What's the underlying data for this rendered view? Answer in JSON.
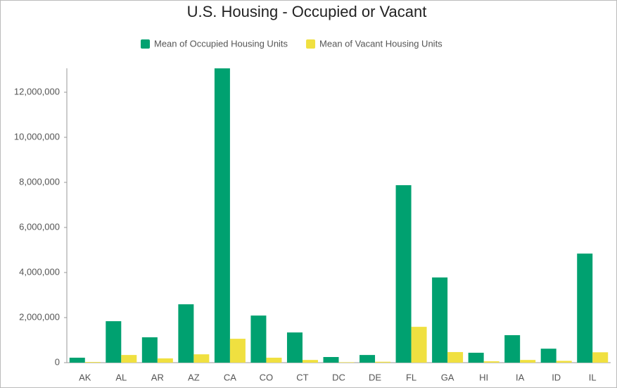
{
  "chart_data": {
    "type": "bar",
    "title": "U.S. Housing - Occupied or Vacant",
    "categories": [
      "AK",
      "AL",
      "AR",
      "AZ",
      "CA",
      "CO",
      "CT",
      "DC",
      "DE",
      "FL",
      "GA",
      "HI",
      "IA",
      "ID",
      "IL"
    ],
    "series": [
      {
        "name": "Mean of Occupied Housing Units",
        "color": "#00a170",
        "values": [
          220000,
          1840000,
          1125000,
          2590000,
          13060000,
          2090000,
          1340000,
          250000,
          340000,
          7875000,
          3780000,
          440000,
          1220000,
          620000,
          4840000
        ]
      },
      {
        "name": "Mean of Vacant Housing Units",
        "color": "#f0e040",
        "values": [
          30000,
          340000,
          190000,
          370000,
          1060000,
          220000,
          120000,
          20000,
          40000,
          1590000,
          470000,
          60000,
          120000,
          80000,
          460000
        ]
      }
    ],
    "ylim": [
      0,
      13062500
    ],
    "yticks": [
      0,
      {
        "value": 2000000,
        "label": "2,000,000"
      },
      {
        "value": 4000000,
        "label": "4,000,000"
      },
      {
        "value": 6000000,
        "label": "6,000,000"
      },
      {
        "value": 8000000,
        "label": "8,000,000"
      },
      {
        "value": 10000000,
        "label": "10,000,000"
      },
      {
        "value": 12000000,
        "label": "12,000,000"
      }
    ],
    "grid": false
  }
}
